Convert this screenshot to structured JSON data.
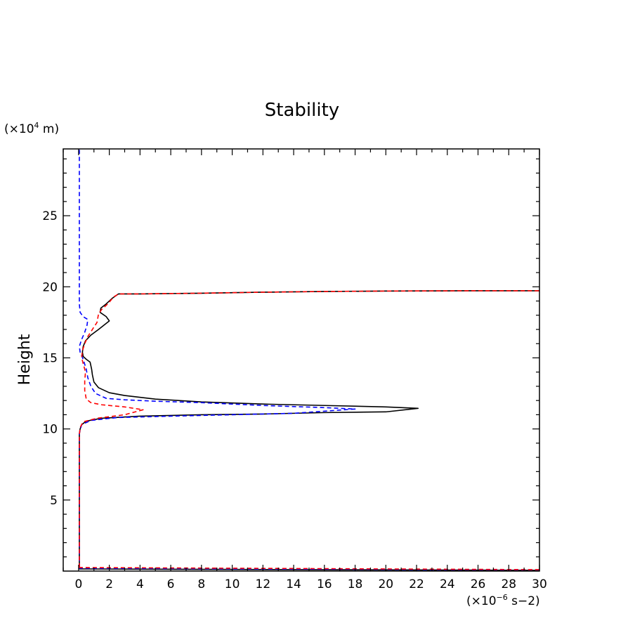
{
  "chart_data": {
    "type": "line",
    "title": "Stability",
    "xlabel": "",
    "ylabel": "Height",
    "x_unit": {
      "prefix": "(×10",
      "exponent": "−6",
      "suffix": " s−2)"
    },
    "y_unit": {
      "prefix": "(×10",
      "exponent": "4",
      "suffix": " m)"
    },
    "xlim": [
      -1,
      30
    ],
    "ylim": [
      0,
      29.7
    ],
    "x_ticks": [
      0,
      2,
      4,
      6,
      8,
      10,
      12,
      14,
      16,
      18,
      20,
      22,
      24,
      26,
      28,
      30
    ],
    "x_tick_labels": [
      "0",
      "2",
      "4",
      "6",
      "8",
      "10",
      "12",
      "14",
      "16",
      "18",
      "20",
      "22",
      "24",
      "26",
      "28",
      "30"
    ],
    "y_ticks": [
      5,
      10,
      15,
      20,
      25
    ],
    "y_tick_labels": [
      "5",
      "10",
      "15",
      "20",
      "25"
    ],
    "grid": false,
    "series": [
      {
        "color": "#000000",
        "style": "solid",
        "points": [
          [
            0.05,
            0.15
          ],
          [
            0.05,
            5
          ],
          [
            0.05,
            9.6
          ],
          [
            0.1,
            10.0
          ],
          [
            0.2,
            10.3
          ],
          [
            0.5,
            10.55
          ],
          [
            1.5,
            10.75
          ],
          [
            4,
            10.9
          ],
          [
            8,
            11.0
          ],
          [
            12,
            11.05
          ],
          [
            16,
            11.15
          ],
          [
            20,
            11.2
          ],
          [
            22.1,
            11.45
          ],
          [
            20,
            11.55
          ],
          [
            16,
            11.65
          ],
          [
            12,
            11.75
          ],
          [
            8,
            11.9
          ],
          [
            5,
            12.1
          ],
          [
            3,
            12.35
          ],
          [
            2,
            12.55
          ],
          [
            1.3,
            12.9
          ],
          [
            1.0,
            13.3
          ],
          [
            0.9,
            13.8
          ],
          [
            0.85,
            14.2
          ],
          [
            0.75,
            14.7
          ],
          [
            0.5,
            14.9
          ],
          [
            0.3,
            15.1
          ],
          [
            0.25,
            15.4
          ],
          [
            0.3,
            15.8
          ],
          [
            0.45,
            16.2
          ],
          [
            0.8,
            16.6
          ],
          [
            1.3,
            17.0
          ],
          [
            2.0,
            17.6
          ],
          [
            1.8,
            17.9
          ],
          [
            1.4,
            18.2
          ],
          [
            1.45,
            18.5
          ],
          [
            1.8,
            18.8
          ],
          [
            2.2,
            19.2
          ],
          [
            2.6,
            19.5
          ],
          [
            4,
            19.5
          ],
          [
            8,
            19.55
          ],
          [
            12,
            19.62
          ],
          [
            16,
            19.67
          ],
          [
            20,
            19.7
          ],
          [
            25,
            19.72
          ],
          [
            30,
            19.72
          ]
        ]
      },
      {
        "color": "#0000ff",
        "style": "dashed",
        "points": [
          [
            0.05,
            0.2
          ],
          [
            0.05,
            5
          ],
          [
            0.05,
            9.7
          ],
          [
            0.2,
            10.3
          ],
          [
            0.8,
            10.6
          ],
          [
            2.5,
            10.8
          ],
          [
            6,
            10.9
          ],
          [
            10,
            11.0
          ],
          [
            14,
            11.1
          ],
          [
            18,
            11.4
          ],
          [
            16,
            11.5
          ],
          [
            12,
            11.65
          ],
          [
            8,
            11.85
          ],
          [
            5,
            11.95
          ],
          [
            3,
            12.05
          ],
          [
            1.8,
            12.15
          ],
          [
            1.1,
            12.5
          ],
          [
            0.8,
            13.0
          ],
          [
            0.6,
            13.6
          ],
          [
            0.5,
            14.2
          ],
          [
            0.3,
            14.9
          ],
          [
            0.1,
            15.4
          ],
          [
            0.05,
            15.8
          ],
          [
            0.2,
            16.3
          ],
          [
            0.4,
            16.8
          ],
          [
            0.55,
            17.3
          ],
          [
            0.6,
            17.7
          ],
          [
            0.3,
            17.9
          ],
          [
            0.1,
            18.2
          ],
          [
            0.05,
            18.8
          ],
          [
            0.05,
            20
          ],
          [
            0.05,
            25
          ],
          [
            0.05,
            29.7
          ]
        ]
      },
      {
        "color": "#ff0000",
        "style": "dashed",
        "points": [
          [
            0.05,
            0.25
          ],
          [
            0.05,
            5
          ],
          [
            0.05,
            9.6
          ],
          [
            0.1,
            10.1
          ],
          [
            0.3,
            10.5
          ],
          [
            1.2,
            10.75
          ],
          [
            3,
            11.0
          ],
          [
            4.2,
            11.35
          ],
          [
            3,
            11.55
          ],
          [
            1.5,
            11.7
          ],
          [
            0.8,
            11.85
          ],
          [
            0.5,
            12.1
          ],
          [
            0.4,
            12.7
          ],
          [
            0.4,
            13.4
          ],
          [
            0.45,
            14.0
          ],
          [
            0.3,
            14.6
          ],
          [
            0.2,
            15.0
          ],
          [
            0.25,
            15.5
          ],
          [
            0.4,
            16.0
          ],
          [
            0.6,
            16.5
          ],
          [
            0.9,
            17.0
          ],
          [
            1.2,
            17.5
          ],
          [
            1.3,
            18.1
          ],
          [
            1.5,
            18.4
          ],
          [
            1.9,
            18.8
          ],
          [
            2.3,
            19.3
          ],
          [
            2.6,
            19.5
          ],
          [
            4,
            19.5
          ],
          [
            8,
            19.55
          ],
          [
            12,
            19.62
          ],
          [
            16,
            19.67
          ],
          [
            20,
            19.7
          ],
          [
            25,
            19.72
          ],
          [
            30,
            19.72
          ]
        ]
      },
      {
        "color": "#000000",
        "style": "solid",
        "points": [
          [
            0,
            0.15
          ],
          [
            30,
            0.05
          ]
        ]
      },
      {
        "color": "#0000ff",
        "style": "dashed",
        "points": [
          [
            0,
            0.2
          ],
          [
            30,
            0.08
          ]
        ]
      },
      {
        "color": "#ff0000",
        "style": "dashed",
        "points": [
          [
            0,
            0.25
          ],
          [
            30,
            0.1
          ]
        ]
      }
    ]
  }
}
